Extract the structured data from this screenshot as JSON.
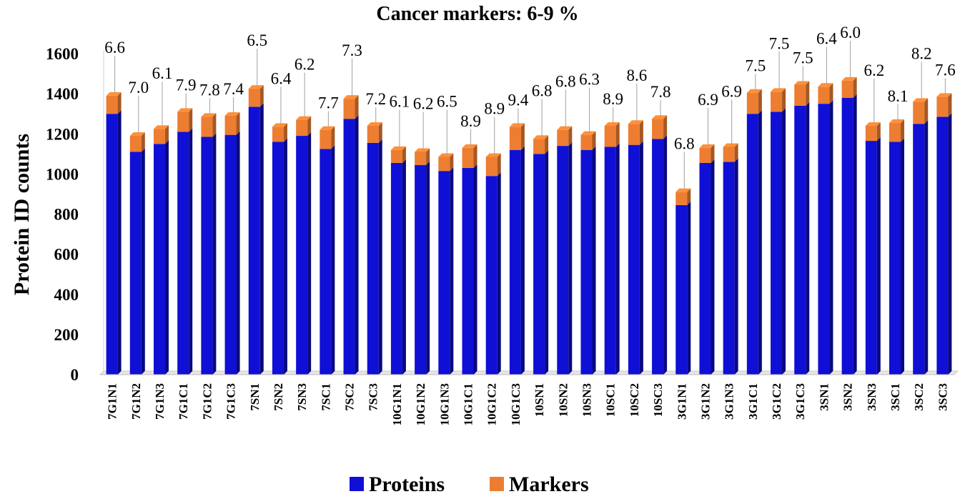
{
  "chart_data": {
    "type": "bar",
    "stacked": true,
    "title": "Cancer markers:  6-9 %",
    "xlabel": "",
    "ylabel": "Protein ID counts",
    "ylim": [
      0,
      1600
    ],
    "yticks": [
      0,
      200,
      400,
      600,
      800,
      1000,
      1200,
      1400,
      1600
    ],
    "grid": false,
    "legend_position": "bottom",
    "categories": [
      "7G1N1",
      "7G1N2",
      "7G1N3",
      "7G1C1",
      "7G1C2",
      "7G1C3",
      "7SN1",
      "7SN2",
      "7SN3",
      "7SC1",
      "7SC2",
      "7SC3",
      "10G1N1",
      "10G1N2",
      "10G1N3",
      "10G1C1",
      "10G1C2",
      "10G1C3",
      "10SN1",
      "10SN2",
      "10SN3",
      "10SC1",
      "10SC2",
      "10SC3",
      "3G1N1",
      "3G1N2",
      "3G1N3",
      "3G1C1",
      "3G1C2",
      "3G1C3",
      "3SN1",
      "3SN2",
      "3SN3",
      "3SC1",
      "3SC2",
      "3SC3"
    ],
    "series": [
      {
        "name": "Proteins",
        "color": "#0f0fd6",
        "values": [
          1300,
          1110,
          1150,
          1210,
          1185,
          1195,
          1335,
          1160,
          1190,
          1125,
          1275,
          1155,
          1055,
          1045,
          1015,
          1030,
          990,
          1120,
          1100,
          1140,
          1120,
          1135,
          1145,
          1175,
          845,
          1055,
          1060,
          1300,
          1310,
          1340,
          1350,
          1380,
          1165,
          1160,
          1250,
          1285
        ]
      },
      {
        "name": "Markers",
        "color": "#ed7d31",
        "values": [
          90,
          80,
          75,
          100,
          100,
          95,
          90,
          75,
          80,
          95,
          100,
          85,
          65,
          65,
          70,
          100,
          95,
          115,
          75,
          80,
          75,
          105,
          105,
          100,
          65,
          75,
          75,
          105,
          100,
          105,
          85,
          85,
          75,
          95,
          110,
          100
        ]
      }
    ],
    "data_labels": [
      "6.6",
      "7.0",
      "6.1",
      "7.9",
      "7.8",
      "7.4",
      "6.5",
      "6.4",
      "6.2",
      "7.7",
      "7.3",
      "7.2",
      "6.1",
      "6.2",
      "6.5",
      "8.9",
      "8.9",
      "9.4",
      "6.8",
      "6.8",
      "6.3",
      "8.9",
      "8.6",
      "7.8",
      "6.8",
      "6.9",
      "6.9",
      "7.5",
      "7.5",
      "7.5",
      "6.4",
      "6.0",
      "6.2",
      "8.1",
      "8.2",
      "7.6"
    ],
    "label_offsets": [
      60,
      60,
      70,
      30,
      30,
      30,
      60,
      60,
      70,
      30,
      60,
      30,
      60,
      60,
      70,
      30,
      60,
      30,
      60,
      60,
      70,
      30,
      60,
      30,
      60,
      60,
      70,
      30,
      60,
      30,
      60,
      60,
      70,
      30,
      60,
      30
    ]
  }
}
